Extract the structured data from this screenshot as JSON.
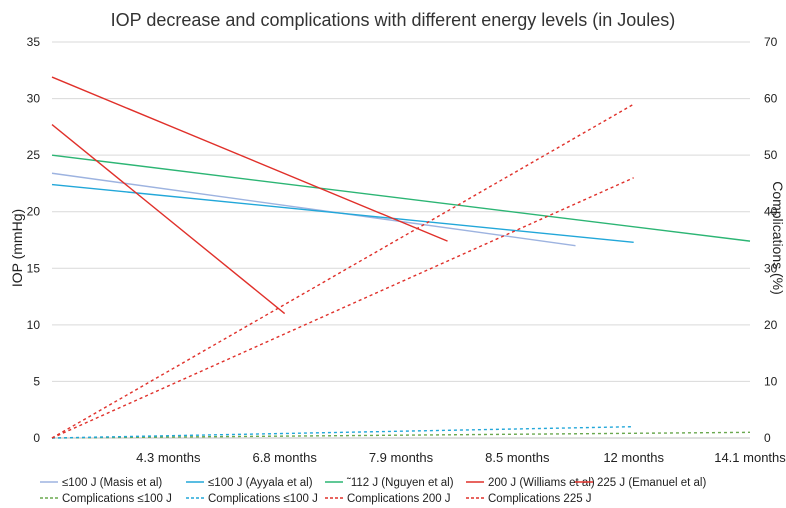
{
  "chart_data": {
    "type": "line",
    "title": "IOP decrease and complications with different energy levels (in Joules)",
    "xlabel": "",
    "ylabel": "IOP (mmHg)",
    "y2label": "Complications (%)",
    "x_categories": [
      "",
      "4.3 months",
      "6.8 months",
      "7.9 months",
      "8.5 months",
      "12 months",
      "14.1 months"
    ],
    "ylim": [
      0,
      35
    ],
    "y_ticks": [
      0,
      5,
      10,
      15,
      20,
      25,
      30,
      35
    ],
    "y2lim": [
      0,
      70
    ],
    "y2_ticks": [
      0,
      10,
      20,
      30,
      40,
      50,
      60,
      70
    ],
    "grid": true,
    "legend_position": "bottom",
    "series": [
      {
        "name": "≤100 J (Masis et al)",
        "axis": "left",
        "style": "solid",
        "color": "#9db3e0",
        "points": [
          [
            0,
            23.4
          ],
          [
            4.5,
            17.0
          ]
        ]
      },
      {
        "name": "≤100 J (Ayyala et al)",
        "axis": "left",
        "style": "solid",
        "color": "#22a7d9",
        "points": [
          [
            0,
            22.4
          ],
          [
            5,
            17.3
          ]
        ]
      },
      {
        "name": "˜112 J (Nguyen et al)",
        "axis": "left",
        "style": "solid",
        "color": "#2cb574",
        "points": [
          [
            0,
            25.0
          ],
          [
            6,
            17.4
          ]
        ]
      },
      {
        "name": "200 J (Williams et al)",
        "axis": "left",
        "style": "solid",
        "color": "#e0302a",
        "points": [
          [
            0,
            31.9
          ],
          [
            3.4,
            17.4
          ]
        ]
      },
      {
        "name": "225 J (Emanuel et al)",
        "axis": "left",
        "style": "solid",
        "color": "#e0302a",
        "points": [
          [
            0,
            27.7
          ],
          [
            2.0,
            11.0
          ]
        ]
      },
      {
        "name": "Complications ≤100 J",
        "axis": "right",
        "style": "dashed",
        "color": "#6aa84f",
        "points": [
          [
            0,
            0
          ],
          [
            6,
            1.0
          ]
        ]
      },
      {
        "name": "Complications ≤100 J",
        "axis": "right",
        "style": "dashed",
        "color": "#22a7d9",
        "points": [
          [
            0,
            0
          ],
          [
            5,
            2.0
          ]
        ]
      },
      {
        "name": "Complications 200 J",
        "axis": "right",
        "style": "dashed",
        "color": "#e0302a",
        "points": [
          [
            0,
            0
          ],
          [
            5,
            59.0
          ]
        ]
      },
      {
        "name": "Complications 225 J",
        "axis": "right",
        "style": "dashed",
        "color": "#e0302a",
        "points": [
          [
            0,
            0
          ],
          [
            5,
            46.0
          ]
        ]
      }
    ]
  }
}
